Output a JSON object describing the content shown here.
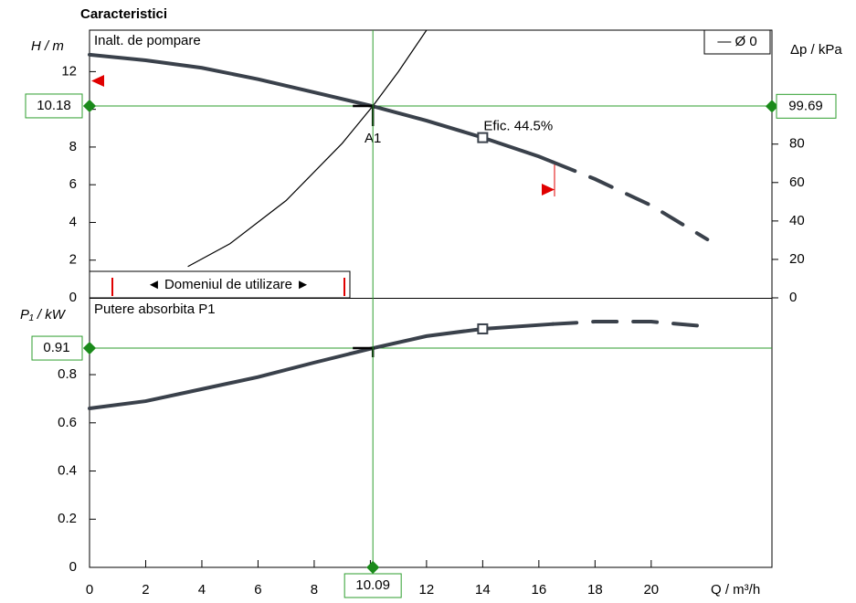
{
  "title": "Caracteristici",
  "chart_data": [
    {
      "type": "line",
      "subtitle": "Inalt. de pompare",
      "ylabel": "H / m",
      "y2label": "Δp / kPa",
      "xlim": [
        0,
        24.3
      ],
      "ylim": [
        0,
        14.2
      ],
      "yticks": [
        0,
        2,
        4,
        6,
        8,
        10,
        12
      ],
      "y2lim": [
        0,
        139.3
      ],
      "y2ticks": [
        0,
        20,
        40,
        60,
        80,
        100
      ],
      "series": [
        {
          "color": "#3a414b",
          "x": [
            0,
            2,
            4,
            6,
            8,
            10,
            12,
            14,
            16,
            16.5
          ],
          "values": [
            12.9,
            12.6,
            12.2,
            11.6,
            10.9,
            10.2,
            9.4,
            8.5,
            7.5,
            7.2
          ]
        },
        {
          "color": "#3a414b",
          "dash": true,
          "x": [
            16.5,
            18,
            20,
            22
          ],
          "values": [
            7.2,
            6.3,
            4.9,
            3.1
          ]
        }
      ],
      "system_curve": {
        "color": "#000000",
        "x": [
          3.5,
          5,
          7,
          9,
          10.09,
          11,
          12
        ],
        "values": [
          1.66,
          2.87,
          5.16,
          8.2,
          10.18,
          12.0,
          14.2
        ]
      },
      "operating_point": {
        "x": 10.09,
        "y": 10.18,
        "y2": 99.69,
        "label": "A1"
      },
      "marker": {
        "x": 14,
        "label": "Efic. 44.5%"
      },
      "legend": "— Ø 0",
      "legend_position": "top-right",
      "range_label": "◄ Domeniul de utilizare ►"
    },
    {
      "type": "line",
      "subtitle": "Putere absorbita P1",
      "ylabel": "P₁ / kW",
      "xlabel": "Q / m³/h",
      "xlim": [
        0,
        24.3
      ],
      "xticks": [
        0,
        2,
        4,
        6,
        8,
        10,
        12,
        14,
        16,
        18,
        20
      ],
      "ylim": [
        0,
        1.115
      ],
      "yticks": [
        0,
        0.2,
        0.4,
        0.6,
        0.8
      ],
      "series": [
        {
          "color": "#3a414b",
          "x": [
            0,
            2,
            4,
            6,
            8,
            10.09,
            12,
            14,
            16.5
          ],
          "values": [
            0.66,
            0.69,
            0.74,
            0.79,
            0.85,
            0.91,
            0.96,
            0.99,
            1.01
          ]
        },
        {
          "color": "#3a414b",
          "dash": true,
          "x": [
            16.5,
            18,
            20,
            22
          ],
          "values": [
            1.01,
            1.02,
            1.02,
            1.0
          ]
        }
      ],
      "operating_point": {
        "y": 0.91
      },
      "marker": {
        "x": 14
      }
    }
  ]
}
